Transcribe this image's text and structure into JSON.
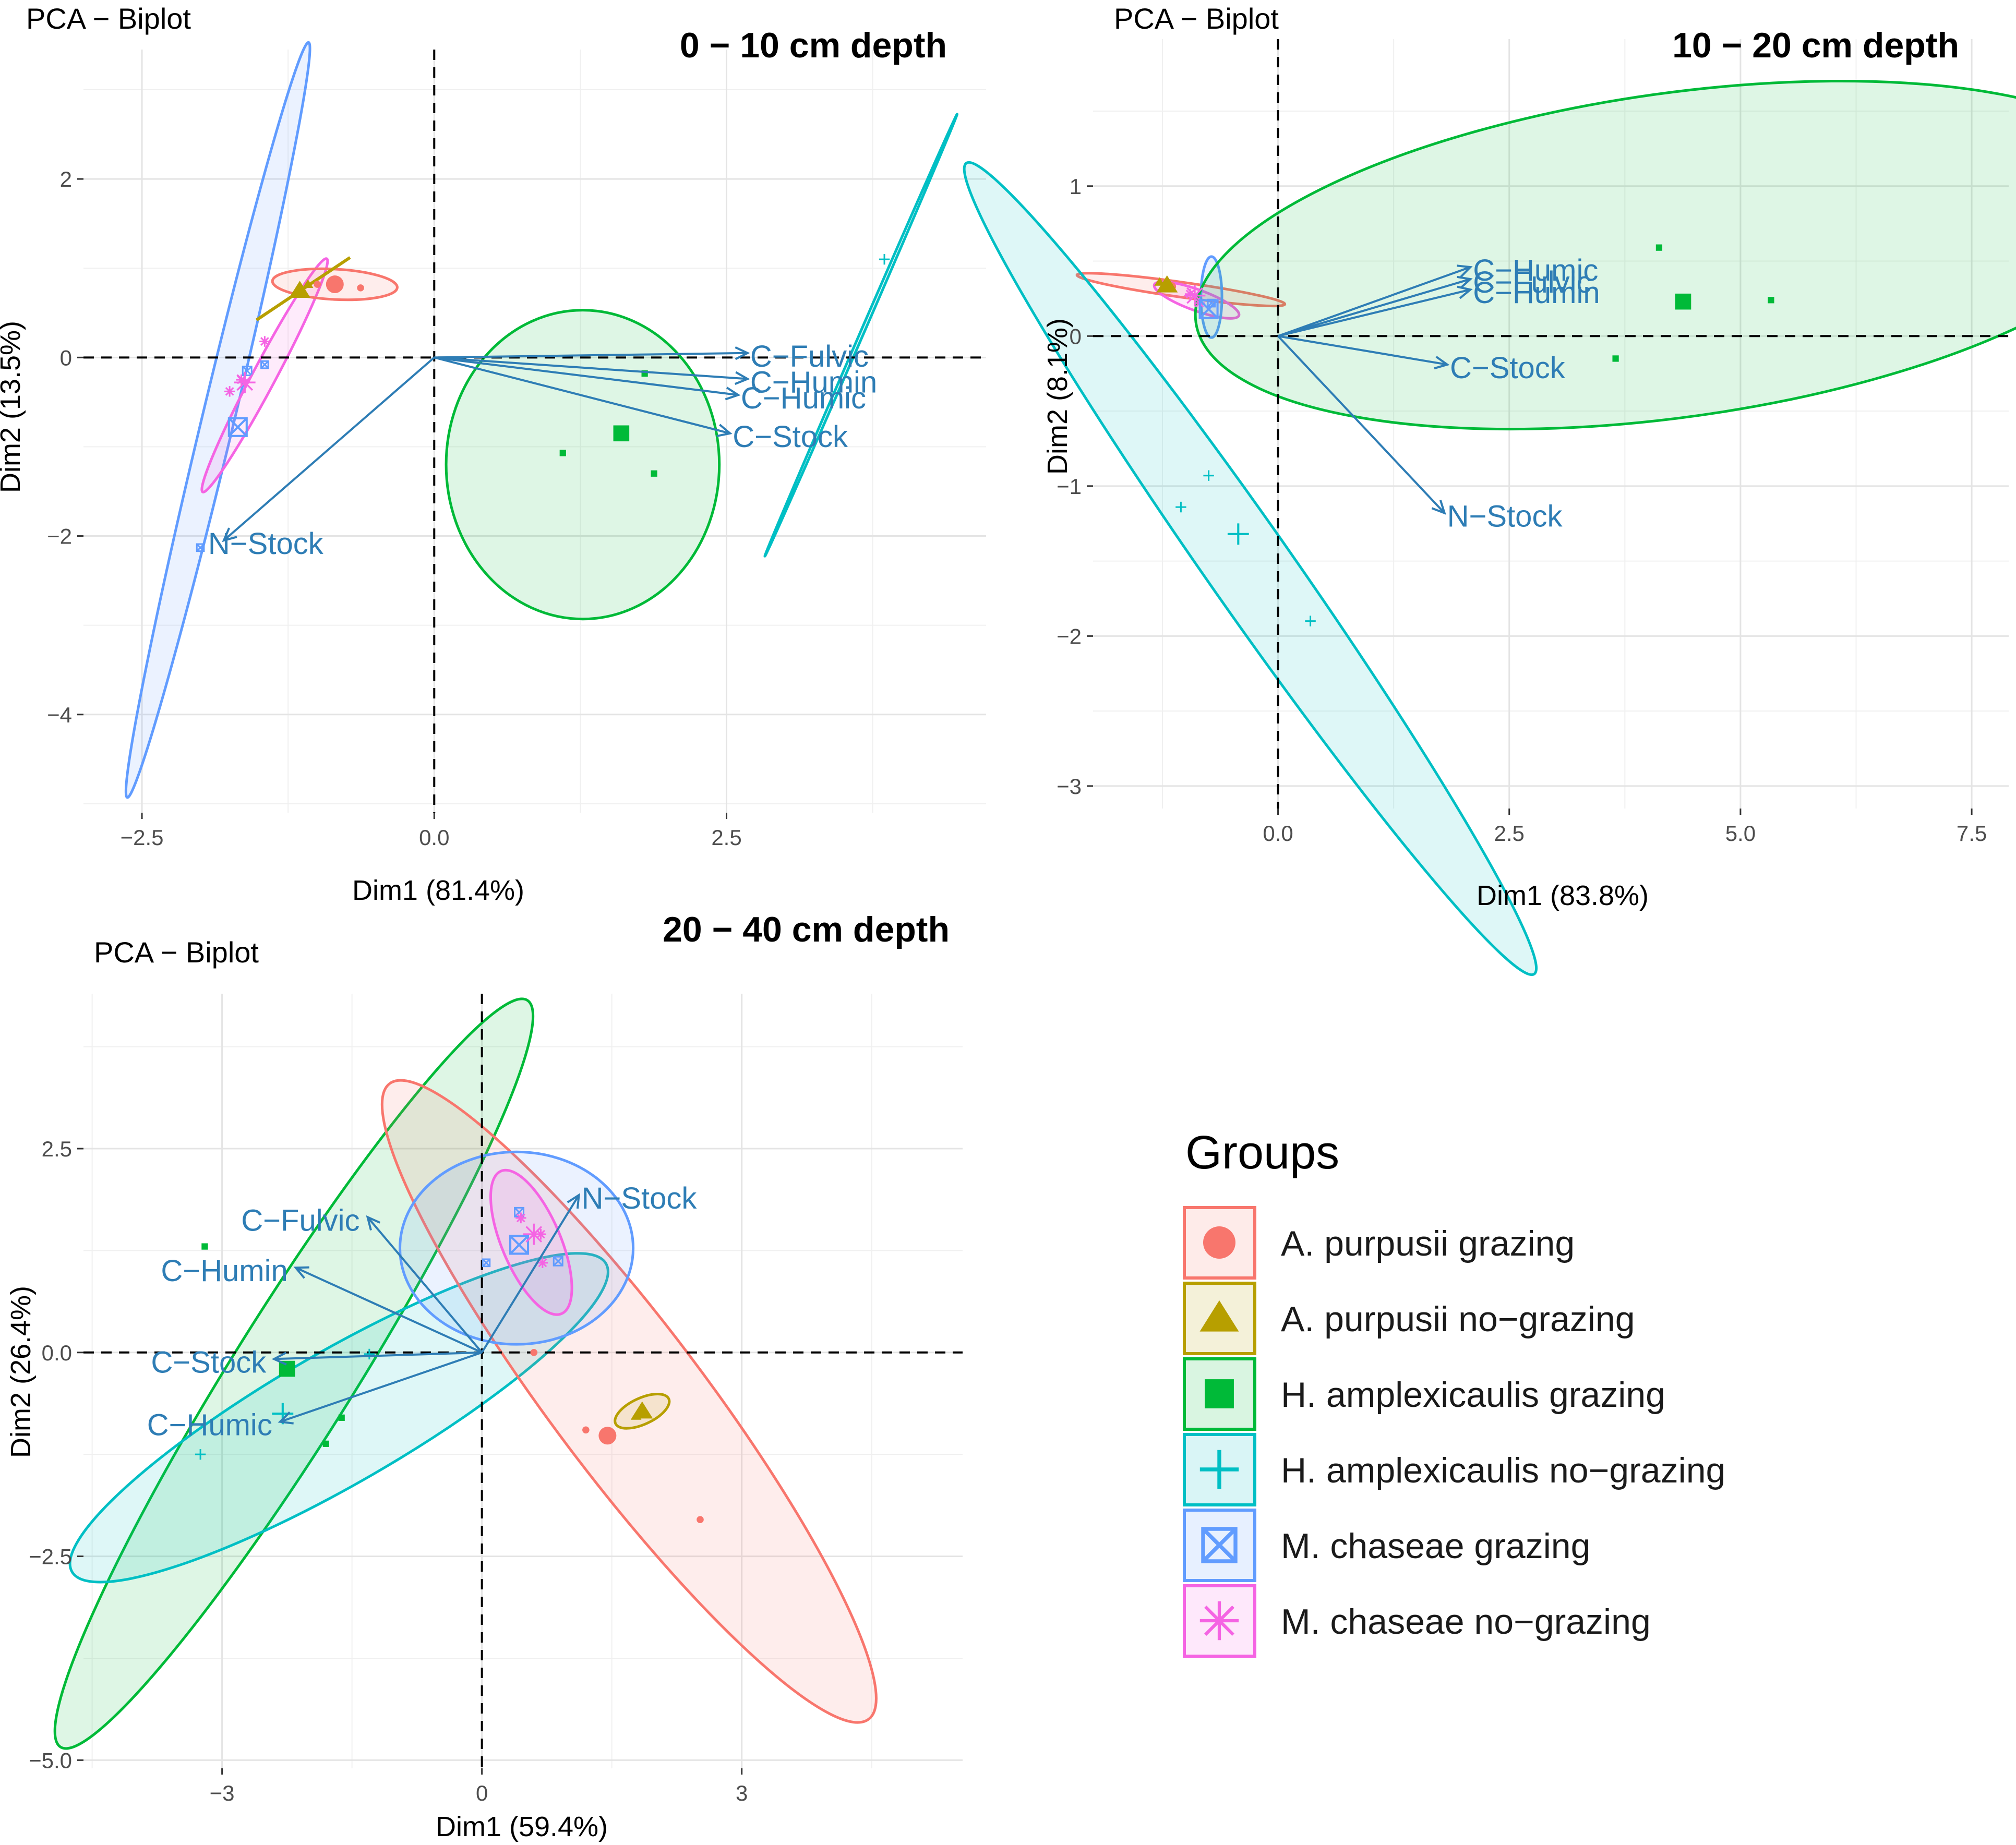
{
  "colors": {
    "ap_g": "#F8766D",
    "ap_ng": "#B79F00",
    "ha_g": "#00BA38",
    "ha_ng": "#00BFC4",
    "mc_g": "#619CFF",
    "mc_ng": "#F564E3",
    "arrow": "#2E7DB5"
  },
  "legend": {
    "title": "Groups",
    "items": [
      {
        "key": "ap_g",
        "label": "A. purpusii grazing",
        "shape": "circle"
      },
      {
        "key": "ap_ng",
        "label": "A. purpusii no−grazing",
        "shape": "triangle"
      },
      {
        "key": "ha_g",
        "label": "H. amplexicaulis grazing",
        "shape": "square"
      },
      {
        "key": "ha_ng",
        "label": "H. amplexicaulis no−grazing",
        "shape": "plus"
      },
      {
        "key": "mc_g",
        "label": "M. chaseae grazing",
        "shape": "boxx"
      },
      {
        "key": "mc_ng",
        "label": "M. chaseae no−grazing",
        "shape": "asterisk"
      }
    ]
  },
  "chart_data": [
    {
      "type": "scatter",
      "title": "PCA − Biplot",
      "subtitle": "0 − 10 cm depth",
      "xlabel": "Dim1 (81.4%)",
      "ylabel": "Dim2 (13.5%)",
      "xlim": [
        -3.0,
        4.72
      ],
      "ylim": [
        -5.1,
        3.45
      ],
      "xticks": [
        -2.5,
        0.0,
        2.5
      ],
      "xtick_labels": [
        "−2.5",
        "0.0",
        "2.5"
      ],
      "yticks": [
        -4,
        -2,
        0,
        2
      ],
      "ytick_labels": [
        "−4",
        "−2",
        "0",
        "2"
      ],
      "arrows": [
        {
          "label": "C−Fulvic",
          "x": 2.68,
          "y": 0.05
        },
        {
          "label": "C−Humin",
          "x": 2.68,
          "y": -0.24
        },
        {
          "label": "C−Humic",
          "x": 2.6,
          "y": -0.42
        },
        {
          "label": "C−Stock",
          "x": 2.53,
          "y": -0.85
        },
        {
          "label": "N−Stock",
          "x": -1.8,
          "y": -2.05
        }
      ],
      "ellipses": [
        {
          "group": "mc_g",
          "cx": -1.85,
          "cy": -0.7,
          "rx": 4.35,
          "ry": 0.18,
          "angle": 76.5
        },
        {
          "group": "mc_ng",
          "cx": -1.45,
          "cy": -0.2,
          "rx": 1.48,
          "ry": 0.13,
          "angle": 62
        },
        {
          "group": "ap_g",
          "cx": -0.85,
          "cy": 0.82,
          "rx": 0.7,
          "ry": 0.17,
          "angle": -3
        },
        {
          "group": "ha_g",
          "cx": 1.27,
          "cy": -1.2,
          "rx": 1.53,
          "ry": 1.73,
          "angle": 0
        },
        {
          "group": "ha_ng",
          "cx": 3.65,
          "cy": 0.25,
          "rx": 2.7,
          "ry": 0.02,
          "angle": 66.5
        }
      ],
      "segments": [
        {
          "group": "ap_ng",
          "x1": -1.52,
          "y1": 0.42,
          "x2": -0.72,
          "y2": 1.12
        }
      ],
      "points": [
        {
          "group": "ap_g",
          "x": -1.0,
          "y": 0.82,
          "size": 0.4
        },
        {
          "group": "ap_g",
          "x": -0.63,
          "y": 0.78,
          "size": 0.4
        },
        {
          "group": "ap_g",
          "x": -0.85,
          "y": 0.82,
          "size": 1
        },
        {
          "group": "ap_ng",
          "x": -1.15,
          "y": 0.75,
          "size": 1
        },
        {
          "group": "ap_ng",
          "x": -1.08,
          "y": 0.82,
          "size": 0.5
        },
        {
          "group": "ha_g",
          "x": 1.8,
          "y": -0.18,
          "size": 0.4
        },
        {
          "group": "ha_g",
          "x": 1.1,
          "y": -1.07,
          "size": 0.4
        },
        {
          "group": "ha_g",
          "x": 1.88,
          "y": -1.3,
          "size": 0.4
        },
        {
          "group": "ha_g",
          "x": 1.6,
          "y": -0.85,
          "size": 1
        },
        {
          "group": "ha_ng",
          "x": 3.85,
          "y": 1.1,
          "size": 0.5
        },
        {
          "group": "mc_g",
          "x": -1.6,
          "y": -0.15,
          "size": 0.5
        },
        {
          "group": "mc_g",
          "x": -1.45,
          "y": -0.08,
          "size": 0.4
        },
        {
          "group": "mc_g",
          "x": -1.68,
          "y": -0.78,
          "size": 1
        },
        {
          "group": "mc_g",
          "x": -2.0,
          "y": -2.13,
          "size": 0.4
        },
        {
          "group": "mc_ng",
          "x": -1.45,
          "y": 0.18,
          "size": 0.5
        },
        {
          "group": "mc_ng",
          "x": -1.65,
          "y": -0.25,
          "size": 0.5
        },
        {
          "group": "mc_ng",
          "x": -1.75,
          "y": -0.38,
          "size": 0.5
        },
        {
          "group": "mc_ng",
          "x": -1.62,
          "y": -0.28,
          "size": 1
        }
      ]
    },
    {
      "type": "scatter",
      "title": "PCA − Biplot",
      "subtitle": "10 − 20 cm depth",
      "xlabel": "Dim1 (83.8%)",
      "ylabel": "Dim2 (8.1%)",
      "xlim": [
        -2.0,
        7.9
      ],
      "ylim": [
        -3.15,
        1.98
      ],
      "xticks": [
        0.0,
        2.5,
        5.0,
        7.5
      ],
      "xtick_labels": [
        "0.0",
        "2.5",
        "5.0",
        "7.5"
      ],
      "yticks": [
        -3,
        -2,
        -1,
        0,
        1
      ],
      "ytick_labels": [
        "−3",
        "−2",
        "−1",
        "0",
        "1"
      ],
      "arrows": [
        {
          "label": "C−Humic",
          "x": 2.08,
          "y": 0.46
        },
        {
          "label": "C−Fulvic",
          "x": 2.08,
          "y": 0.38
        },
        {
          "label": "C−Humin",
          "x": 2.08,
          "y": 0.31
        },
        {
          "label": "C−Stock",
          "x": 1.83,
          "y": -0.19
        },
        {
          "label": "N−Stock",
          "x": 1.8,
          "y": -1.18
        }
      ],
      "ellipses": [
        {
          "group": "ap_g",
          "cx": -1.05,
          "cy": 0.31,
          "rx": 0.7,
          "ry": 0.05,
          "angle": -8
        },
        {
          "group": "mc_ng",
          "cx": -0.88,
          "cy": 0.24,
          "rx": 0.3,
          "ry": 0.07,
          "angle": -20
        },
        {
          "group": "mc_g",
          "cx": -0.72,
          "cy": 0.26,
          "rx": 0.27,
          "ry": 0.07,
          "angle": 90
        },
        {
          "group": "ha_ng",
          "cx": -0.3,
          "cy": -1.55,
          "rx": 3.3,
          "ry": 0.28,
          "angle": -55
        },
        {
          "group": "ha_g",
          "cx": 4.3,
          "cy": 0.54,
          "rx": 3.23,
          "ry": 1.08,
          "angle": 8
        }
      ],
      "points": [
        {
          "group": "ap_g",
          "x": -1.15,
          "y": 0.33,
          "size": 0.5
        },
        {
          "group": "ap_ng",
          "x": -1.2,
          "y": 0.34,
          "size": 1
        },
        {
          "group": "ap_ng",
          "x": -1.28,
          "y": 0.36,
          "size": 0.5
        },
        {
          "group": "mc_ng",
          "x": -0.95,
          "y": 0.28,
          "size": 0.5
        },
        {
          "group": "mc_ng",
          "x": -0.85,
          "y": 0.22,
          "size": 0.5
        },
        {
          "group": "mc_ng",
          "x": -0.9,
          "y": 0.27,
          "size": 1
        },
        {
          "group": "mc_g",
          "x": -0.75,
          "y": 0.18,
          "size": 1
        },
        {
          "group": "mc_g",
          "x": -0.72,
          "y": 0.22,
          "size": 0.4
        },
        {
          "group": "ha_ng",
          "x": -0.75,
          "y": -0.93,
          "size": 0.5
        },
        {
          "group": "ha_ng",
          "x": -1.05,
          "y": -1.14,
          "size": 0.5
        },
        {
          "group": "ha_ng",
          "x": -0.43,
          "y": -1.32,
          "size": 1
        },
        {
          "group": "ha_ng",
          "x": 0.35,
          "y": -1.9,
          "size": 0.5
        },
        {
          "group": "ha_g",
          "x": 4.12,
          "y": 0.59,
          "size": 0.4
        },
        {
          "group": "ha_g",
          "x": 4.38,
          "y": 0.23,
          "size": 1
        },
        {
          "group": "ha_g",
          "x": 5.33,
          "y": 0.24,
          "size": 0.4
        },
        {
          "group": "ha_g",
          "x": 3.65,
          "y": -0.15,
          "size": 0.4
        }
      ]
    },
    {
      "type": "scatter",
      "title": "PCA − Biplot",
      "subtitle": "20 − 40 cm depth",
      "xlabel": "Dim1 (59.4%)",
      "ylabel": "Dim2 (26.4%)",
      "xlim": [
        -4.6,
        5.55
      ],
      "ylim": [
        -5.1,
        4.4
      ],
      "xticks": [
        -3,
        0,
        3
      ],
      "xtick_labels": [
        "−3",
        "0",
        "3"
      ],
      "yticks": [
        -5.0,
        -2.5,
        0.0,
        2.5
      ],
      "ytick_labels": [
        "−5.0",
        "−2.5",
        "0.0",
        "2.5"
      ],
      "arrows": [
        {
          "label": "N−Stock",
          "x": 1.12,
          "y": 1.93
        },
        {
          "label": "C−Fulvic",
          "x": -1.32,
          "y": 1.66
        },
        {
          "label": "C−Humin",
          "x": -2.15,
          "y": 1.04
        },
        {
          "label": "C−Stock",
          "x": -2.4,
          "y": -0.08
        },
        {
          "label": "C−Humic",
          "x": -2.33,
          "y": -0.85
        }
      ],
      "ellipses": [
        {
          "group": "ha_g",
          "cx": -2.17,
          "cy": -0.26,
          "rx": 5.4,
          "ry": 0.75,
          "angle": 58
        },
        {
          "group": "ha_ng",
          "cx": -1.65,
          "cy": -0.8,
          "rx": 3.78,
          "ry": 0.81,
          "angle": 30
        },
        {
          "group": "ap_g",
          "cx": 1.7,
          "cy": -0.6,
          "rx": 4.88,
          "ry": 0.93,
          "angle": -53
        },
        {
          "group": "mc_g",
          "cx": 0.4,
          "cy": 1.28,
          "rx": 1.43,
          "ry": 1.18,
          "angle": 0
        },
        {
          "group": "mc_ng",
          "cx": 0.57,
          "cy": 1.35,
          "rx": 0.95,
          "ry": 0.36,
          "angle": -67
        },
        {
          "group": "ap_ng",
          "cx": 1.85,
          "cy": -0.72,
          "rx": 0.36,
          "ry": 0.16,
          "angle": 25
        }
      ],
      "points": [
        {
          "group": "ha_g",
          "x": -3.2,
          "y": 1.3,
          "size": 0.4
        },
        {
          "group": "ha_g",
          "x": -2.25,
          "y": -0.2,
          "size": 1
        },
        {
          "group": "ha_g",
          "x": -1.62,
          "y": -0.8,
          "size": 0.4
        },
        {
          "group": "ha_g",
          "x": -1.8,
          "y": -1.12,
          "size": 0.4
        },
        {
          "group": "ha_ng",
          "x": -1.3,
          "y": -0.02,
          "size": 0.5
        },
        {
          "group": "ha_ng",
          "x": -2.3,
          "y": -0.75,
          "size": 1
        },
        {
          "group": "ha_ng",
          "x": -3.25,
          "y": -1.25,
          "size": 0.5
        },
        {
          "group": "ap_g",
          "x": 0.6,
          "y": 0.0,
          "size": 0.4
        },
        {
          "group": "ap_g",
          "x": 1.2,
          "y": -0.95,
          "size": 0.4
        },
        {
          "group": "ap_g",
          "x": 1.45,
          "y": -1.02,
          "size": 1
        },
        {
          "group": "ap_g",
          "x": 2.52,
          "y": -2.05,
          "size": 0.4
        },
        {
          "group": "ap_ng",
          "x": 1.85,
          "y": -0.72,
          "size": 1
        },
        {
          "group": "ap_ng",
          "x": 1.78,
          "y": -0.78,
          "size": 0.5
        },
        {
          "group": "mc_g",
          "x": 0.05,
          "y": 1.1,
          "size": 0.4
        },
        {
          "group": "mc_g",
          "x": 0.43,
          "y": 1.72,
          "size": 0.5
        },
        {
          "group": "mc_g",
          "x": 0.43,
          "y": 1.32,
          "size": 1
        },
        {
          "group": "mc_g",
          "x": 0.88,
          "y": 1.12,
          "size": 0.5
        },
        {
          "group": "mc_ng",
          "x": 0.68,
          "y": 1.45,
          "size": 0.5
        },
        {
          "group": "mc_ng",
          "x": 0.45,
          "y": 1.65,
          "size": 0.5
        },
        {
          "group": "mc_ng",
          "x": 0.7,
          "y": 1.1,
          "size": 0.5
        },
        {
          "group": "mc_ng",
          "x": 0.6,
          "y": 1.45,
          "size": 1
        }
      ]
    }
  ]
}
